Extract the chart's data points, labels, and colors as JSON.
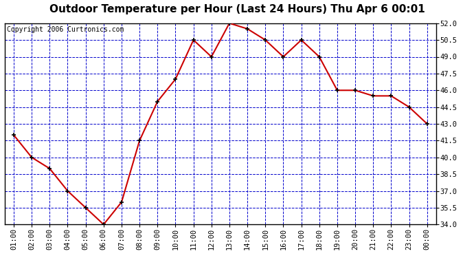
{
  "title": "Outdoor Temperature per Hour (Last 24 Hours) Thu Apr 6 00:01",
  "copyright": "Copyright 2006 Curtronics.com",
  "hours": [
    "01:00",
    "02:00",
    "03:00",
    "04:00",
    "05:00",
    "06:00",
    "07:00",
    "08:00",
    "09:00",
    "10:00",
    "11:00",
    "12:00",
    "13:00",
    "14:00",
    "15:00",
    "16:00",
    "17:00",
    "18:00",
    "19:00",
    "20:00",
    "21:00",
    "22:00",
    "23:00",
    "00:00"
  ],
  "temps": [
    42.0,
    40.0,
    39.0,
    37.0,
    35.5,
    34.0,
    36.0,
    41.5,
    45.0,
    47.0,
    50.5,
    49.0,
    52.0,
    51.5,
    50.5,
    49.0,
    50.5,
    49.0,
    46.0,
    46.0,
    45.5,
    45.5,
    44.5,
    43.0
  ],
  "ylim_min": 34.0,
  "ylim_max": 52.0,
  "yticks": [
    34.0,
    35.5,
    37.0,
    38.5,
    40.0,
    41.5,
    43.0,
    44.5,
    46.0,
    47.5,
    49.0,
    50.5,
    52.0
  ],
  "line_color": "#cc0000",
  "marker_color": "#000000",
  "background_color": "#ffffff",
  "plot_bg_color": "#ffffff",
  "grid_color": "#0000cc",
  "title_fontsize": 11,
  "copyright_fontsize": 7,
  "tick_fontsize": 7.5
}
